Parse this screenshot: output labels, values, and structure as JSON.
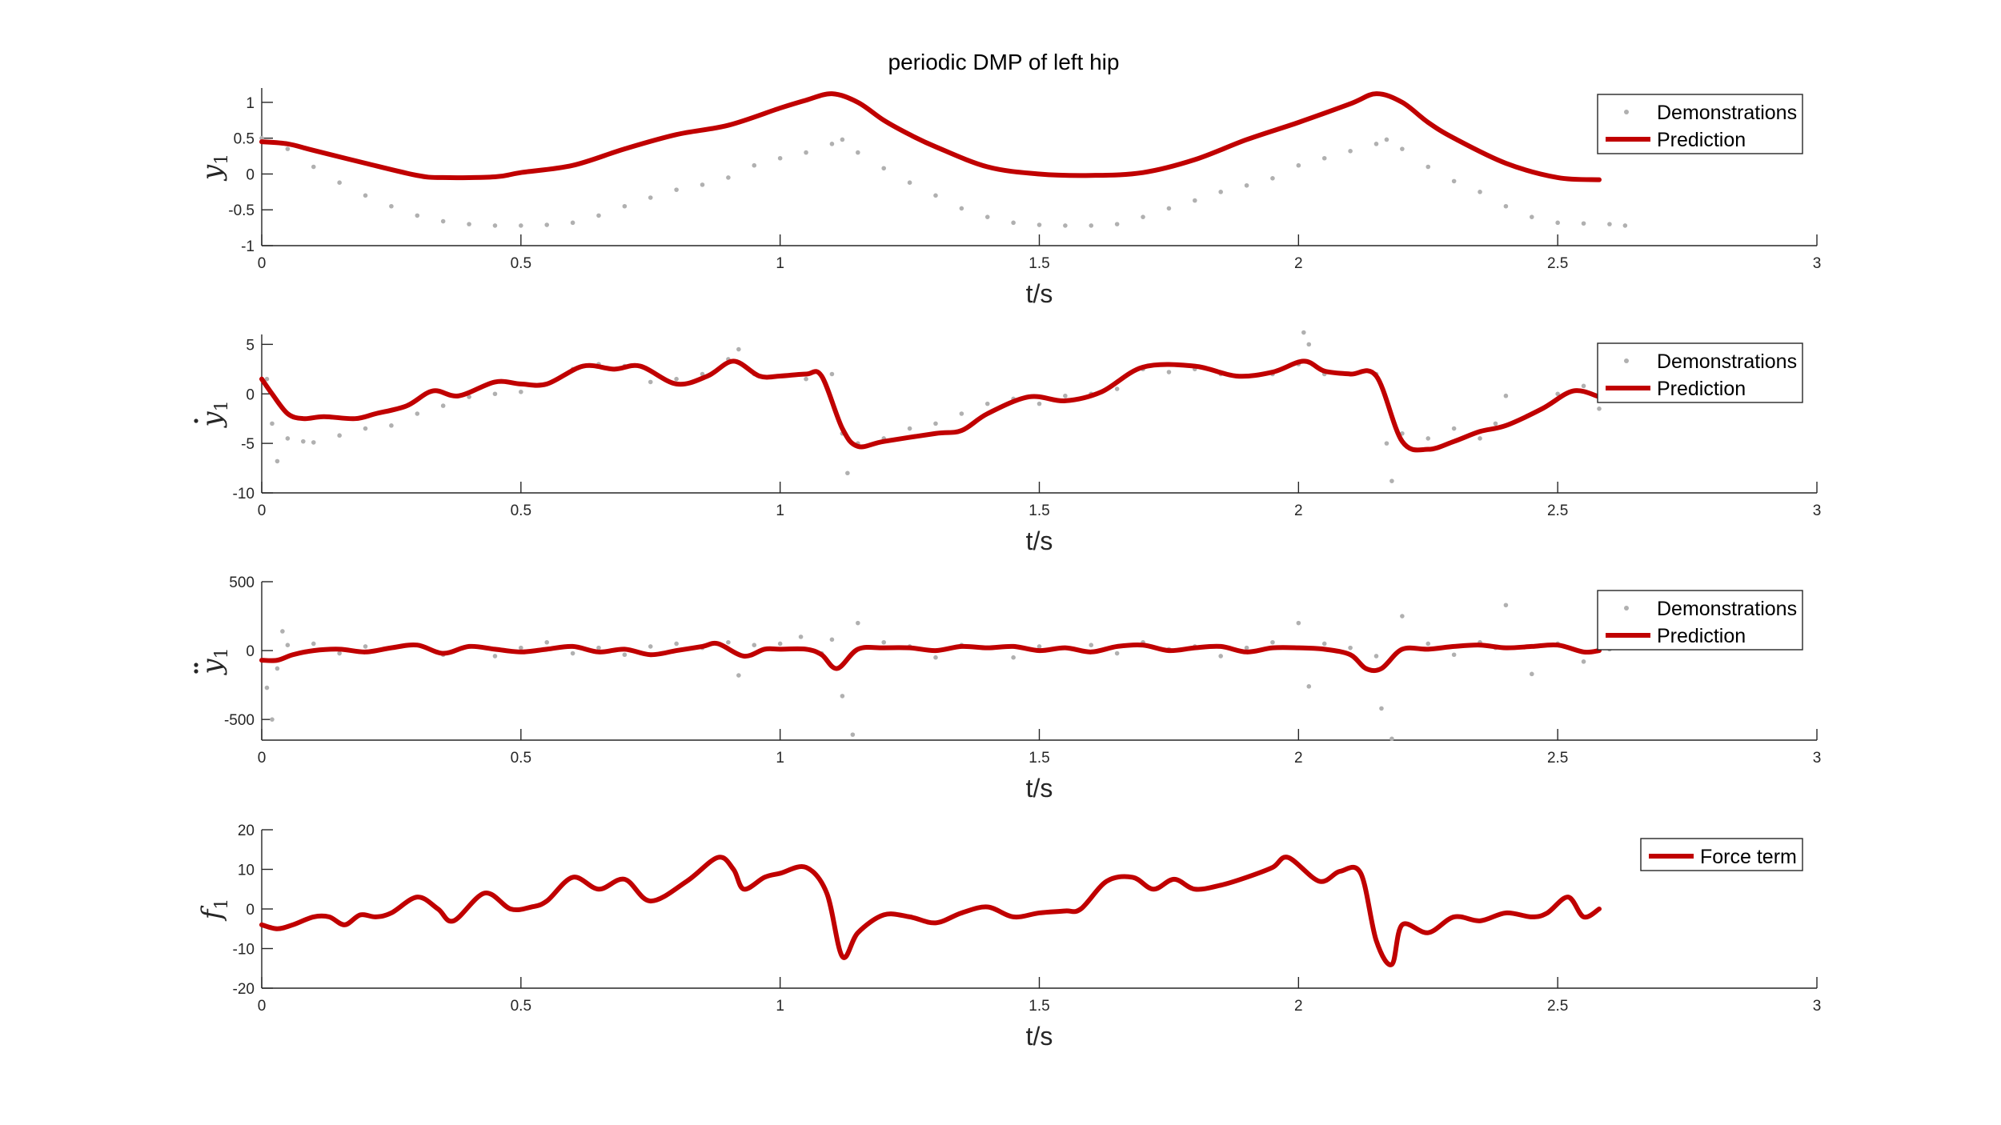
{
  "figure": {
    "title": "periodic DMP of left hip",
    "colors": {
      "prediction": "#c00000",
      "demonstrations": "#b0b0b0",
      "axis": "#262626"
    }
  },
  "chart_data": [
    {
      "type": "line",
      "ylabel": "y",
      "ylabel_sub": "1",
      "ylabel_accent": "",
      "xlabel": "t/s",
      "xlim": [
        0,
        3
      ],
      "ylim": [
        -1,
        1.2
      ],
      "xticks": [
        0,
        0.5,
        1,
        1.5,
        2,
        2.5,
        3
      ],
      "xtick_labels": [
        "0",
        "0.5",
        "1",
        "1.5",
        "2",
        "2.5",
        "3"
      ],
      "yticks": [
        -1,
        -0.5,
        0,
        0.5,
        1
      ],
      "ytick_labels": [
        "-1",
        "-0.5",
        "0",
        "0.5",
        "1"
      ],
      "legend_placement": "top-right",
      "legend": [
        "Demonstrations",
        "Prediction"
      ],
      "series": [
        {
          "name": "Demonstrations",
          "style": "dots",
          "x": [
            0,
            0.05,
            0.1,
            0.15,
            0.2,
            0.25,
            0.3,
            0.35,
            0.4,
            0.45,
            0.5,
            0.55,
            0.6,
            0.65,
            0.7,
            0.75,
            0.8,
            0.85,
            0.9,
            0.95,
            1.0,
            1.05,
            1.1,
            1.12,
            1.15,
            1.2,
            1.25,
            1.3,
            1.35,
            1.4,
            1.45,
            1.5,
            1.55,
            1.6,
            1.65,
            1.7,
            1.75,
            1.8,
            1.85,
            1.9,
            1.95,
            2.0,
            2.05,
            2.1,
            2.15,
            2.17,
            2.2,
            2.25,
            2.3,
            2.35,
            2.4,
            2.45,
            2.5,
            2.55,
            2.6,
            2.63
          ],
          "y": [
            0.5,
            0.35,
            0.1,
            -0.12,
            -0.3,
            -0.45,
            -0.58,
            -0.66,
            -0.7,
            -0.72,
            -0.72,
            -0.71,
            -0.68,
            -0.58,
            -0.45,
            -0.33,
            -0.22,
            -0.15,
            -0.05,
            0.12,
            0.22,
            0.3,
            0.42,
            0.48,
            0.3,
            0.08,
            -0.12,
            -0.3,
            -0.48,
            -0.6,
            -0.68,
            -0.71,
            -0.72,
            -0.72,
            -0.7,
            -0.6,
            -0.48,
            -0.37,
            -0.25,
            -0.16,
            -0.06,
            0.12,
            0.22,
            0.32,
            0.42,
            0.48,
            0.35,
            0.1,
            -0.1,
            -0.25,
            -0.45,
            -0.6,
            -0.68,
            -0.69,
            -0.7,
            -0.72
          ]
        },
        {
          "name": "Prediction",
          "style": "line",
          "x": [
            0,
            0.05,
            0.1,
            0.2,
            0.3,
            0.35,
            0.45,
            0.5,
            0.6,
            0.7,
            0.8,
            0.9,
            1.0,
            1.05,
            1.1,
            1.15,
            1.2,
            1.25,
            1.3,
            1.4,
            1.5,
            1.6,
            1.7,
            1.8,
            1.9,
            2.0,
            2.1,
            2.15,
            2.2,
            2.25,
            2.3,
            2.4,
            2.5,
            2.58
          ],
          "y": [
            0.45,
            0.42,
            0.33,
            0.15,
            -0.02,
            -0.05,
            -0.04,
            0.02,
            0.12,
            0.35,
            0.55,
            0.68,
            0.92,
            1.03,
            1.12,
            1.0,
            0.75,
            0.55,
            0.38,
            0.1,
            0.0,
            -0.02,
            0.02,
            0.2,
            0.48,
            0.72,
            0.98,
            1.12,
            1.0,
            0.72,
            0.5,
            0.15,
            -0.05,
            -0.08
          ]
        }
      ]
    },
    {
      "type": "line",
      "ylabel": "y",
      "ylabel_sub": "1",
      "ylabel_accent": "dot",
      "xlabel": "t/s",
      "xlim": [
        0,
        3
      ],
      "ylim": [
        -10,
        6
      ],
      "xticks": [
        0,
        0.5,
        1,
        1.5,
        2,
        2.5,
        3
      ],
      "xtick_labels": [
        "0",
        "0.5",
        "1",
        "1.5",
        "2",
        "2.5",
        "3"
      ],
      "yticks": [
        -10,
        -5,
        0,
        5
      ],
      "ytick_labels": [
        "-10",
        "-5",
        "0",
        "5"
      ],
      "legend_placement": "top-right",
      "legend": [
        "Demonstrations",
        "Prediction"
      ],
      "series": [
        {
          "name": "Demonstrations",
          "style": "dots",
          "x": [
            0.01,
            0.02,
            0.03,
            0.05,
            0.08,
            0.1,
            0.15,
            0.2,
            0.25,
            0.3,
            0.35,
            0.4,
            0.45,
            0.5,
            0.55,
            0.6,
            0.65,
            0.7,
            0.75,
            0.8,
            0.85,
            0.9,
            0.92,
            0.95,
            1.0,
            1.05,
            1.1,
            1.12,
            1.13,
            1.15,
            1.2,
            1.25,
            1.3,
            1.35,
            1.4,
            1.45,
            1.5,
            1.55,
            1.6,
            1.65,
            1.7,
            1.75,
            1.8,
            1.85,
            1.9,
            1.95,
            2.0,
            2.01,
            2.02,
            2.05,
            2.1,
            2.15,
            2.17,
            2.18,
            2.2,
            2.25,
            2.3,
            2.35,
            2.38,
            2.4,
            2.45,
            2.5,
            2.55,
            2.58
          ],
          "y": [
            1.5,
            -3,
            -6.8,
            -4.5,
            -4.8,
            -4.9,
            -4.2,
            -3.5,
            -3.2,
            -2,
            -1.2,
            -0.3,
            0,
            0.2,
            1,
            2.5,
            3,
            2.8,
            1.2,
            1.5,
            2,
            3.5,
            4.5,
            2,
            1.8,
            1.5,
            2,
            -4,
            -8,
            -5,
            -4.5,
            -3.5,
            -3,
            -2,
            -1,
            -0.5,
            -1,
            -0.2,
            0,
            0.5,
            2.5,
            2.2,
            2.5,
            2,
            1.8,
            2,
            3,
            6.2,
            5,
            2,
            2,
            2,
            -5,
            -8.8,
            -4,
            -4.5,
            -3.5,
            -4.5,
            -3,
            -0.2,
            -2,
            0,
            0.8,
            -1.5
          ]
        },
        {
          "name": "Prediction",
          "style": "line",
          "x": [
            0,
            0.02,
            0.05,
            0.08,
            0.12,
            0.18,
            0.22,
            0.28,
            0.33,
            0.38,
            0.45,
            0.5,
            0.55,
            0.62,
            0.68,
            0.73,
            0.8,
            0.86,
            0.91,
            0.96,
            1.0,
            1.05,
            1.08,
            1.12,
            1.15,
            1.2,
            1.3,
            1.35,
            1.4,
            1.48,
            1.55,
            1.62,
            1.7,
            1.8,
            1.88,
            1.95,
            2.01,
            2.05,
            2.1,
            2.15,
            2.2,
            2.25,
            2.3,
            2.35,
            2.4,
            2.47,
            2.53,
            2.58
          ],
          "y": [
            1.5,
            0,
            -2,
            -2.5,
            -2.3,
            -2.5,
            -2,
            -1.2,
            0.3,
            -0.2,
            1.2,
            1,
            1,
            2.8,
            2.5,
            2.8,
            1,
            1.8,
            3.3,
            1.8,
            1.8,
            2,
            1.8,
            -3.5,
            -5.3,
            -4.8,
            -4,
            -3.7,
            -2,
            -0.3,
            -0.7,
            0.2,
            2.7,
            2.8,
            1.8,
            2.2,
            3.3,
            2.3,
            2,
            1.8,
            -4.8,
            -5.6,
            -4.8,
            -3.8,
            -3.2,
            -1.5,
            0.3,
            -0.3
          ]
        }
      ]
    },
    {
      "type": "line",
      "ylabel": "y",
      "ylabel_sub": "1",
      "ylabel_accent": "ddot",
      "xlabel": "t/s",
      "xlim": [
        0,
        3
      ],
      "ylim": [
        -650,
        500
      ],
      "xticks": [
        0,
        0.5,
        1,
        1.5,
        2,
        2.5,
        3
      ],
      "xtick_labels": [
        "0",
        "0.5",
        "1",
        "1.5",
        "2",
        "2.5",
        "3"
      ],
      "yticks": [
        -500,
        0,
        500
      ],
      "ytick_labels": [
        "-500",
        "0",
        "500"
      ],
      "legend_placement": "top-right",
      "legend": [
        "Demonstrations",
        "Prediction"
      ],
      "series": [
        {
          "name": "Demonstrations",
          "style": "dots",
          "x": [
            0.01,
            0.02,
            0.03,
            0.04,
            0.05,
            0.1,
            0.15,
            0.2,
            0.25,
            0.3,
            0.35,
            0.4,
            0.45,
            0.5,
            0.55,
            0.6,
            0.65,
            0.7,
            0.75,
            0.8,
            0.85,
            0.9,
            0.92,
            0.95,
            1.0,
            1.04,
            1.08,
            1.1,
            1.12,
            1.14,
            1.15,
            1.2,
            1.25,
            1.3,
            1.35,
            1.4,
            1.45,
            1.5,
            1.55,
            1.6,
            1.65,
            1.7,
            1.75,
            1.8,
            1.85,
            1.9,
            1.95,
            2.0,
            2.02,
            2.05,
            2.1,
            2.15,
            2.16,
            2.18,
            2.2,
            2.25,
            2.3,
            2.35,
            2.38,
            2.4,
            2.45,
            2.5,
            2.55,
            2.6
          ],
          "y": [
            -270,
            -500,
            -130,
            140,
            40,
            50,
            -20,
            30,
            20,
            40,
            -30,
            30,
            -40,
            20,
            60,
            -20,
            20,
            -30,
            30,
            50,
            20,
            60,
            -180,
            40,
            50,
            100,
            -20,
            80,
            -330,
            -610,
            200,
            60,
            30,
            -50,
            40,
            20,
            -50,
            30,
            20,
            40,
            -20,
            60,
            10,
            30,
            -40,
            20,
            60,
            200,
            -260,
            50,
            20,
            -40,
            -420,
            -640,
            250,
            50,
            -30,
            60,
            20,
            330,
            -170,
            50,
            -80,
            10
          ]
        },
        {
          "name": "Prediction",
          "style": "line",
          "x": [
            0,
            0.03,
            0.06,
            0.1,
            0.15,
            0.2,
            0.25,
            0.3,
            0.35,
            0.4,
            0.45,
            0.5,
            0.55,
            0.6,
            0.65,
            0.7,
            0.75,
            0.8,
            0.85,
            0.88,
            0.93,
            0.97,
            1.0,
            1.05,
            1.08,
            1.11,
            1.15,
            1.2,
            1.25,
            1.3,
            1.35,
            1.4,
            1.45,
            1.5,
            1.55,
            1.6,
            1.65,
            1.7,
            1.75,
            1.8,
            1.85,
            1.9,
            1.95,
            2.0,
            2.05,
            2.1,
            2.13,
            2.16,
            2.2,
            2.25,
            2.3,
            2.35,
            2.4,
            2.45,
            2.5,
            2.55,
            2.58
          ],
          "y": [
            -70,
            -70,
            -30,
            0,
            10,
            -10,
            20,
            40,
            -20,
            30,
            10,
            -10,
            10,
            30,
            -10,
            10,
            -30,
            0,
            30,
            50,
            -40,
            10,
            10,
            10,
            -30,
            -130,
            10,
            20,
            20,
            0,
            30,
            20,
            30,
            0,
            20,
            -10,
            30,
            40,
            0,
            20,
            30,
            -10,
            20,
            20,
            10,
            -30,
            -130,
            -130,
            10,
            10,
            30,
            40,
            20,
            30,
            40,
            -10,
            0
          ]
        }
      ]
    },
    {
      "type": "line",
      "ylabel": "f",
      "ylabel_sub": "1",
      "ylabel_accent": "",
      "xlabel": "t/s",
      "xlim": [
        0,
        3
      ],
      "ylim": [
        -20,
        20
      ],
      "xticks": [
        0,
        0.5,
        1,
        1.5,
        2,
        2.5,
        3
      ],
      "xtick_labels": [
        "0",
        "0.5",
        "1",
        "1.5",
        "2",
        "2.5",
        "3"
      ],
      "yticks": [
        -20,
        -10,
        0,
        10,
        20
      ],
      "ytick_labels": [
        "-20",
        "-10",
        "0",
        "10",
        "20"
      ],
      "legend_placement": "top-right",
      "legend": [
        "Force term"
      ],
      "series": [
        {
          "name": "Force term",
          "style": "line",
          "x": [
            0,
            0.03,
            0.06,
            0.1,
            0.13,
            0.16,
            0.19,
            0.22,
            0.25,
            0.3,
            0.34,
            0.37,
            0.43,
            0.48,
            0.52,
            0.55,
            0.6,
            0.65,
            0.7,
            0.75,
            0.82,
            0.88,
            0.91,
            0.93,
            0.97,
            1.0,
            1.05,
            1.09,
            1.12,
            1.15,
            1.2,
            1.25,
            1.3,
            1.35,
            1.4,
            1.45,
            1.5,
            1.55,
            1.58,
            1.63,
            1.68,
            1.72,
            1.76,
            1.8,
            1.85,
            1.9,
            1.95,
            1.98,
            2.04,
            2.08,
            2.12,
            2.15,
            2.18,
            2.2,
            2.25,
            2.3,
            2.35,
            2.4,
            2.45,
            2.48,
            2.52,
            2.55,
            2.58
          ],
          "y": [
            -4,
            -5,
            -4,
            -2,
            -2,
            -4,
            -1.5,
            -2,
            -1,
            3,
            0,
            -3,
            4,
            0,
            0.5,
            2,
            8,
            5,
            7.5,
            2,
            7,
            13,
            10,
            5,
            8,
            9,
            10.5,
            4,
            -12,
            -6,
            -1.5,
            -2,
            -3.5,
            -1,
            0.5,
            -2,
            -1,
            -0.5,
            0,
            7,
            8,
            5,
            7.5,
            5,
            6,
            8,
            10.5,
            13,
            7,
            9.5,
            9,
            -8,
            -14,
            -4,
            -6,
            -2,
            -3,
            -1,
            -2,
            -1,
            3,
            -2,
            0
          ]
        }
      ]
    }
  ]
}
